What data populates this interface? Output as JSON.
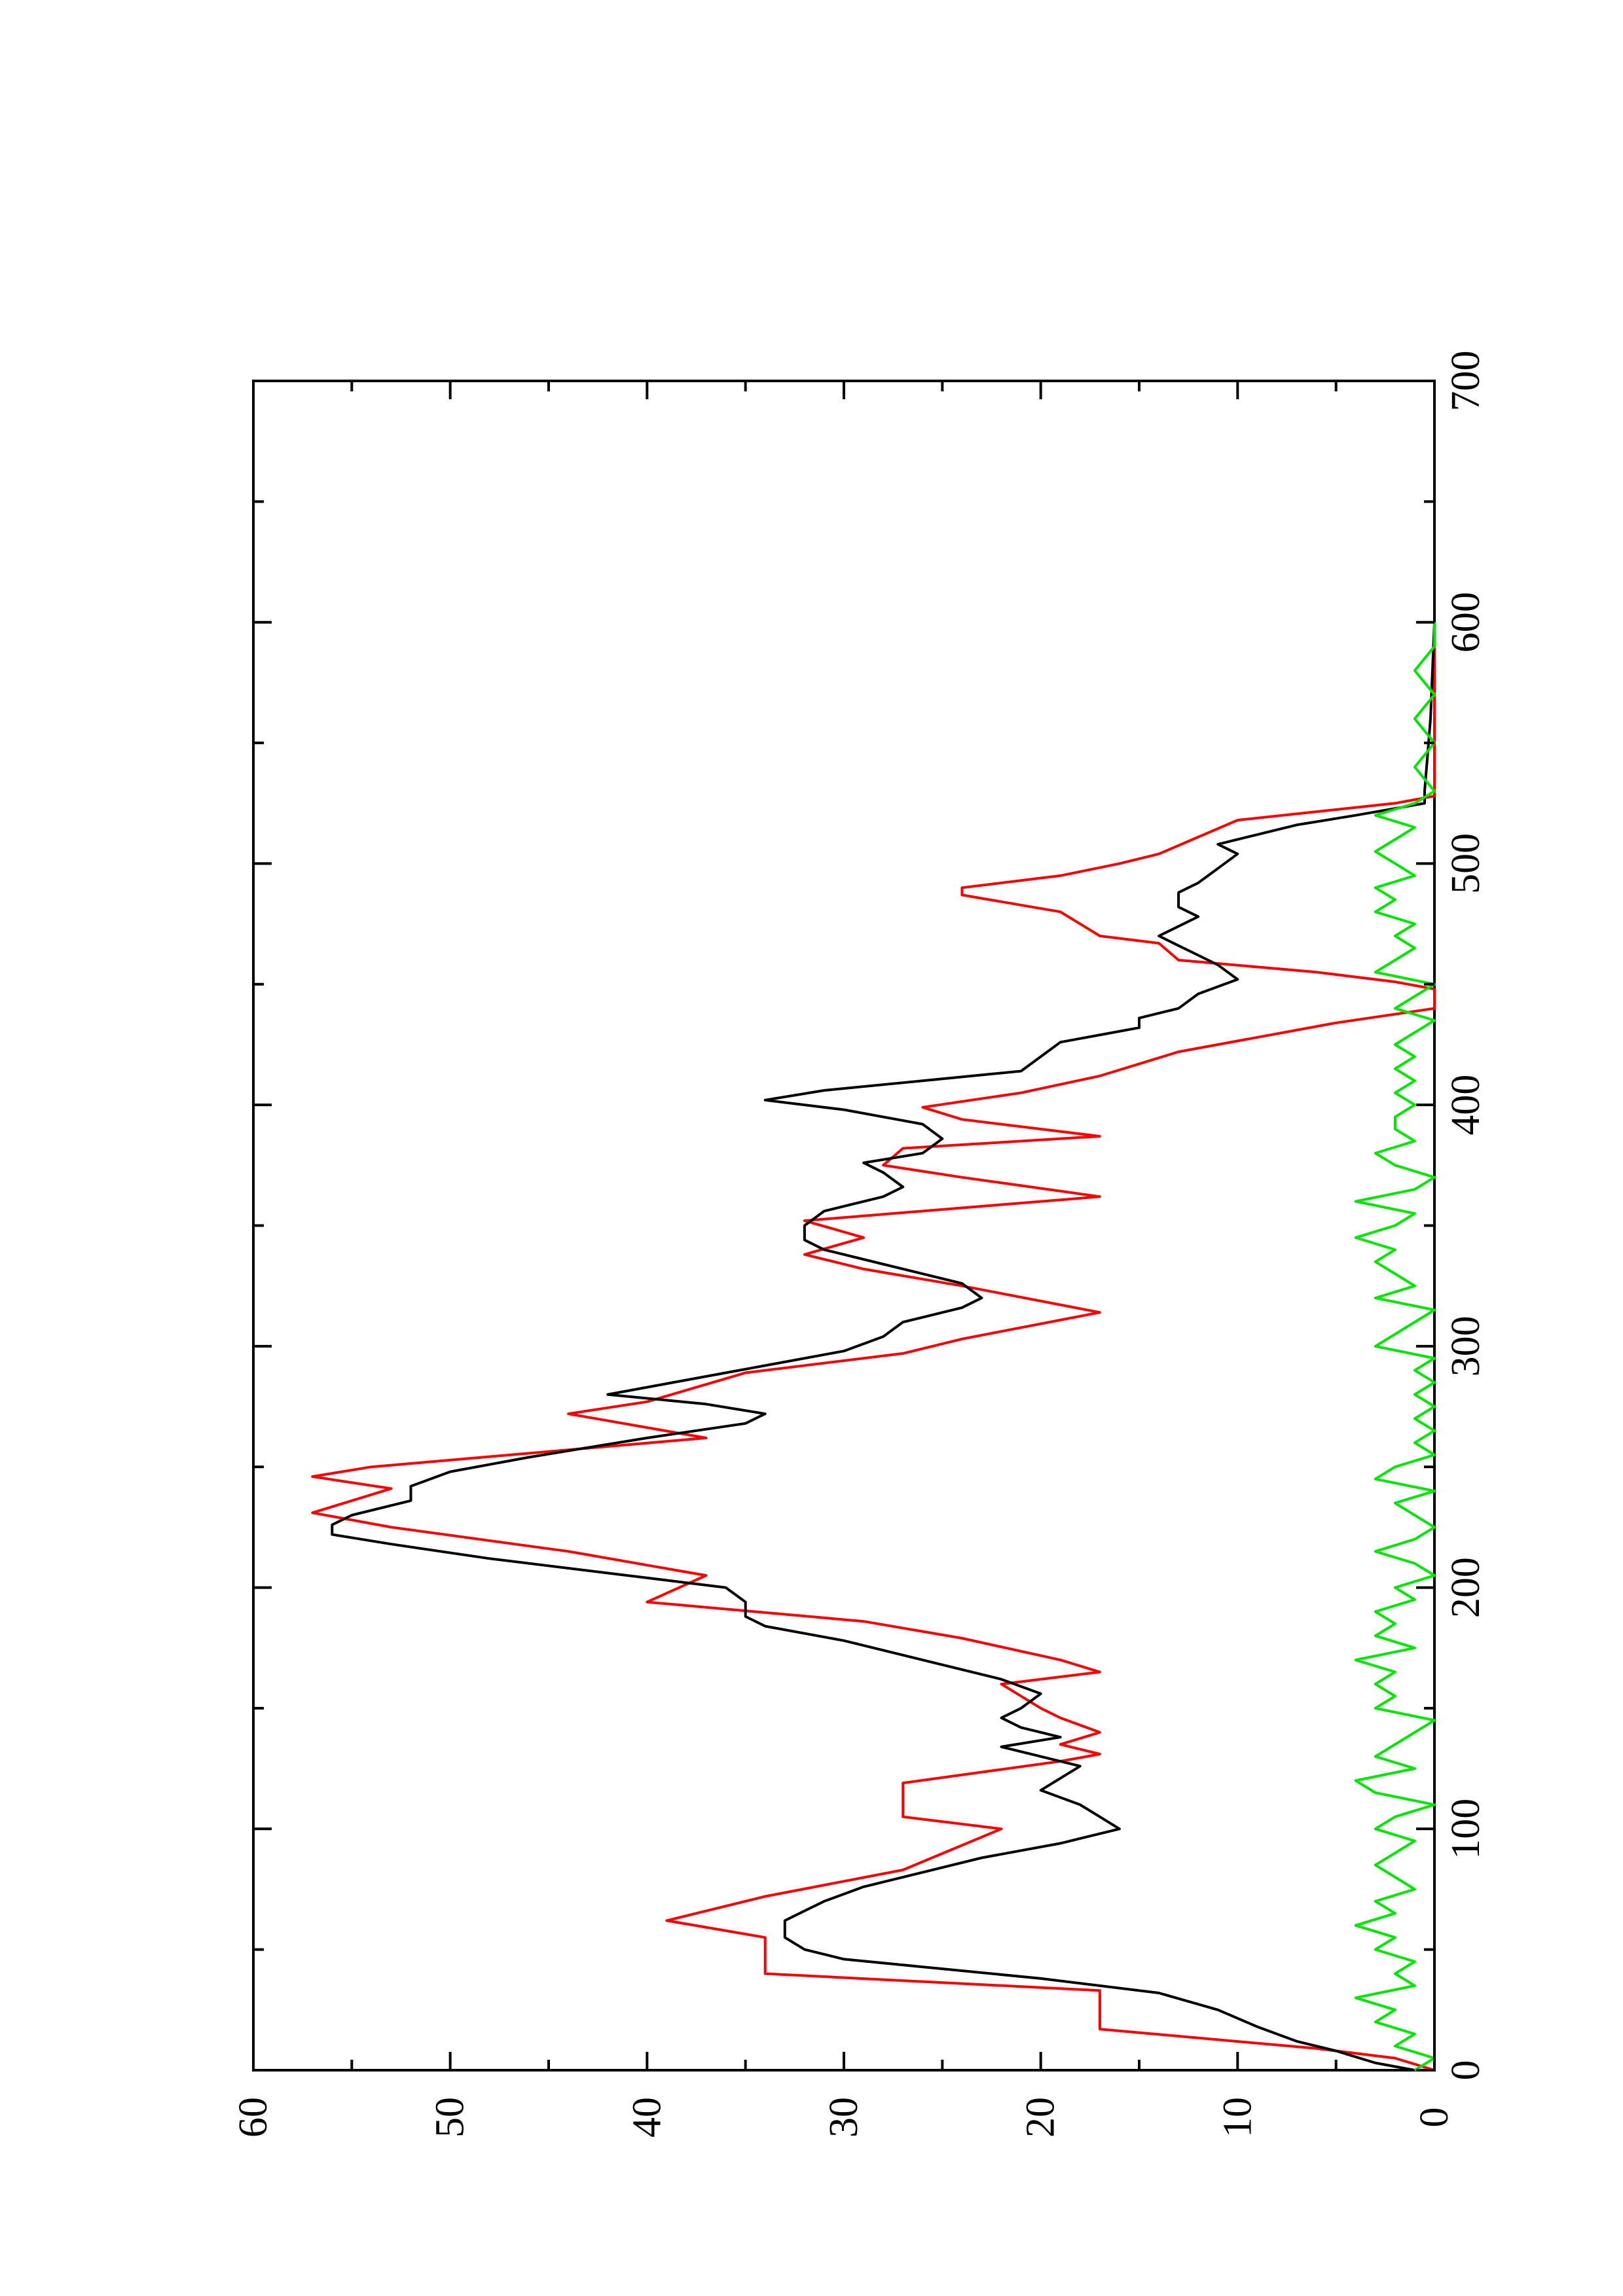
{
  "chart_data": {
    "type": "line",
    "title": "",
    "xlabel": "",
    "ylabel": "",
    "orientation": "rotated-90-ccw",
    "xlim": [
      0,
      700
    ],
    "ylim": [
      0,
      60
    ],
    "x_ticks": [
      "0",
      "100",
      "200",
      "300",
      "400",
      "500",
      "600",
      "700"
    ],
    "y_ticks": [
      "0",
      "10",
      "20",
      "30",
      "40",
      "50",
      "60"
    ],
    "grid": false,
    "legend": "none",
    "series": [
      {
        "color": "#ff0000",
        "x": [
          0,
          5,
          9,
          17,
          33,
          40,
          55,
          62,
          72,
          83,
          100,
          105,
          119,
          128,
          131,
          135,
          140,
          146,
          150,
          160,
          165,
          170,
          179,
          186,
          194,
          205,
          215,
          225,
          231,
          241,
          246,
          250,
          262,
          272,
          277,
          289,
          297,
          303,
          314,
          325,
          332,
          338,
          345,
          352,
          362,
          370,
          375,
          382,
          387,
          394,
          399,
          405,
          412,
          422,
          434,
          440,
          448,
          451,
          455,
          460,
          467,
          470,
          480,
          487,
          490,
          495,
          500,
          504,
          511,
          518,
          525,
          528,
          600
        ],
        "y": [
          0,
          2,
          6,
          17,
          17,
          34,
          34,
          39,
          34,
          27,
          22,
          27,
          27,
          19,
          17,
          19,
          17,
          19,
          20,
          22,
          17,
          19,
          24,
          29,
          40,
          37,
          44,
          53,
          57,
          53,
          57,
          54,
          37,
          44,
          40,
          35,
          27,
          24,
          17,
          24,
          29,
          32,
          29,
          32,
          17,
          24,
          28,
          27,
          17,
          24,
          26,
          21,
          17,
          13,
          5,
          0,
          0,
          2,
          6,
          13,
          14,
          17,
          19,
          24,
          24,
          19,
          16,
          14,
          12,
          10,
          2,
          0,
          0
        ]
      },
      {
        "color": "#000000",
        "x": [
          0,
          3,
          8,
          12,
          18,
          25,
          32,
          38,
          42,
          46,
          50,
          55,
          58,
          62,
          66,
          70,
          76,
          82,
          88,
          94,
          100,
          105,
          110,
          116,
          121,
          126,
          130,
          134,
          138,
          142,
          146,
          150,
          156,
          162,
          168,
          172,
          178,
          184,
          188,
          194,
          200,
          205,
          212,
          218,
          222,
          226,
          230,
          236,
          242,
          248,
          254,
          258,
          262,
          268,
          272,
          276,
          280,
          286,
          292,
          298,
          304,
          310,
          316,
          320,
          326,
          330,
          334,
          340,
          344,
          350,
          356,
          362,
          366,
          372,
          376,
          380,
          386,
          392,
          398,
          402,
          406,
          410,
          414,
          420,
          426,
          432,
          436,
          440,
          446,
          452,
          458,
          462,
          466,
          470,
          474,
          478,
          482,
          488,
          492,
          498,
          504,
          508,
          512,
          516,
          520,
          525,
          530,
          560,
          600
        ],
        "y": [
          1,
          3,
          5,
          7,
          9,
          11,
          14,
          20,
          25,
          30,
          32,
          33,
          33,
          33,
          32,
          31,
          29,
          26,
          23,
          19,
          16,
          17,
          18,
          20,
          19,
          18,
          20,
          22,
          19,
          21,
          22,
          21,
          20,
          22,
          25,
          27,
          30,
          34,
          35,
          35,
          36,
          41,
          48,
          53,
          56,
          56,
          55,
          52,
          52,
          50,
          46,
          43,
          40,
          35,
          34,
          37,
          42,
          38,
          34,
          30,
          28,
          27,
          24,
          23,
          24,
          26,
          28,
          31,
          32,
          32,
          31,
          28,
          27,
          28,
          29,
          26,
          25,
          26,
          30,
          34,
          31,
          26,
          21,
          20,
          19,
          15,
          15,
          13,
          12,
          10,
          11,
          12,
          13,
          14,
          13,
          12,
          13,
          13,
          12,
          11,
          10,
          11,
          9,
          7,
          4,
          0.5,
          0.5,
          0.2,
          0
        ]
      },
      {
        "color": "#00e600",
        "x": [
          0,
          5,
          10,
          15,
          20,
          25,
          30,
          35,
          40,
          45,
          50,
          55,
          60,
          65,
          70,
          75,
          80,
          85,
          90,
          95,
          100,
          105,
          110,
          115,
          120,
          125,
          130,
          135,
          140,
          145,
          150,
          155,
          160,
          165,
          170,
          175,
          180,
          185,
          190,
          195,
          200,
          205,
          210,
          215,
          220,
          225,
          230,
          235,
          240,
          245,
          250,
          255,
          260,
          265,
          270,
          275,
          280,
          285,
          290,
          295,
          300,
          305,
          310,
          315,
          320,
          325,
          330,
          335,
          340,
          345,
          350,
          355,
          360,
          365,
          370,
          375,
          380,
          385,
          390,
          395,
          400,
          405,
          410,
          415,
          420,
          425,
          430,
          435,
          440,
          445,
          450,
          455,
          460,
          465,
          470,
          475,
          480,
          485,
          490,
          495,
          500,
          505,
          510,
          515,
          520,
          525,
          530,
          540,
          550,
          560,
          570,
          580,
          590,
          600
        ],
        "y": [
          1,
          0,
          2,
          1,
          3,
          2,
          4,
          1,
          2,
          1,
          3,
          2,
          4,
          2,
          3,
          1,
          2,
          3,
          2,
          1,
          3,
          2,
          0,
          3,
          4,
          1,
          3,
          2,
          1,
          0,
          3,
          2,
          3,
          2,
          4,
          1,
          3,
          2,
          3,
          1,
          2,
          0,
          1,
          3,
          1,
          0,
          1,
          2,
          0,
          3,
          2,
          0,
          1,
          0,
          1,
          0,
          1,
          0,
          1,
          0,
          3,
          2,
          1,
          0,
          3,
          1,
          2,
          3,
          2,
          4,
          2,
          1,
          4,
          1,
          0,
          2,
          3,
          1,
          2,
          2,
          1,
          2,
          1,
          2,
          1,
          2,
          1,
          0,
          2,
          1,
          0,
          3,
          2,
          1,
          2,
          1,
          3,
          2,
          3,
          1,
          2,
          3,
          2,
          1,
          3,
          1,
          0,
          1,
          0,
          1,
          0,
          1,
          0,
          0
        ]
      }
    ]
  }
}
